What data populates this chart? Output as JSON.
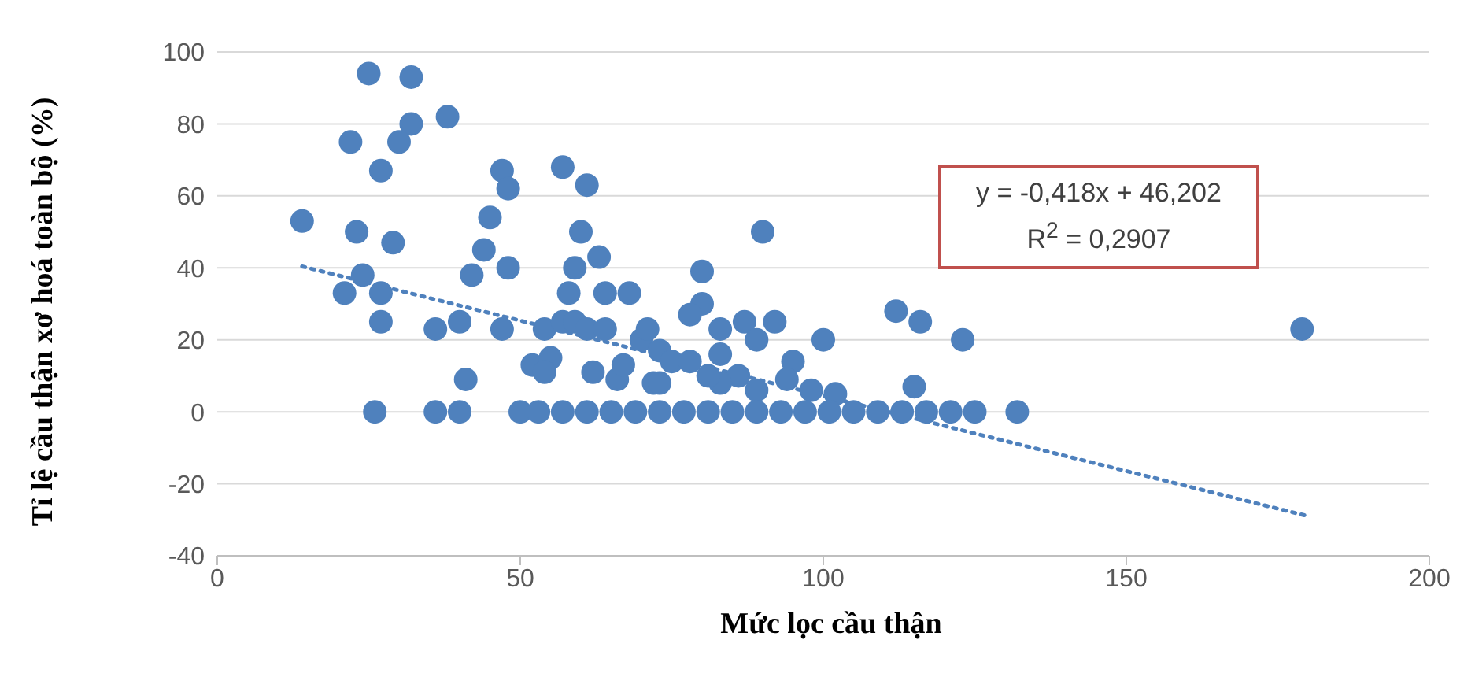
{
  "chart_data": {
    "type": "scatter",
    "xlabel": "Mức lọc cầu thận",
    "ylabel": "Tỉ lệ cầu thận xơ hoá toàn bộ (%)",
    "annotations": [
      "y = -0,418x + 46,202",
      "R$^{2}$ = 0,2907"
    ],
    "xlim": [
      0,
      200
    ],
    "xticks": [
      0,
      50,
      100,
      150,
      200
    ],
    "ylim": [
      -40,
      100
    ],
    "yticks": [
      -40,
      -20,
      0,
      20,
      40,
      60,
      80,
      100
    ],
    "grid": "y",
    "series": [
      {
        "color": "#4f81bd",
        "marker": "circle",
        "x": [
          14,
          25,
          32,
          38,
          32,
          22,
          30,
          27,
          47,
          57,
          48,
          61,
          45,
          23,
          29,
          60,
          44,
          63,
          24,
          48,
          59,
          42,
          21,
          27,
          58,
          64,
          68,
          27,
          40,
          36,
          47,
          54,
          57,
          59,
          61,
          64,
          70,
          52,
          55,
          54,
          62,
          66,
          67,
          41,
          72,
          90,
          80,
          80,
          78,
          83,
          87,
          92,
          89,
          100,
          112,
          116,
          123,
          71,
          73,
          75,
          78,
          83,
          95,
          86,
          73,
          94,
          98,
          102,
          115,
          89,
          83,
          81,
          179,
          26,
          36,
          40,
          50,
          53,
          57,
          61,
          65,
          69,
          73,
          77,
          81,
          85,
          89,
          93,
          97,
          101,
          105,
          109,
          113,
          117,
          121,
          125,
          132
        ],
        "values": [
          53,
          94,
          93,
          82,
          80,
          75,
          75,
          67,
          67,
          68,
          62,
          63,
          54,
          50,
          47,
          50,
          45,
          43,
          38,
          40,
          40,
          38,
          33,
          33,
          33,
          33,
          33,
          25,
          25,
          23,
          23,
          23,
          25,
          25,
          23,
          23,
          20,
          13,
          15,
          11,
          11,
          9,
          13,
          9,
          8,
          50,
          39,
          30,
          27,
          23,
          25,
          25,
          20,
          20,
          28,
          25,
          20,
          23,
          17,
          14,
          14,
          16,
          14,
          10,
          8,
          9,
          6,
          5,
          7,
          6,
          8,
          10,
          23,
          0,
          0,
          0,
          0,
          0,
          0,
          0,
          0,
          0,
          0,
          0,
          0,
          0,
          0,
          0,
          0,
          0,
          0,
          0,
          0,
          0,
          0,
          0,
          0
        ]
      },
      {
        "type": "line",
        "color": "#4f81bd",
        "marker": "none",
        "line_style": "dotted",
        "x": [
          14,
          180
        ],
        "values": [
          40.4,
          -29.0
        ]
      }
    ]
  }
}
